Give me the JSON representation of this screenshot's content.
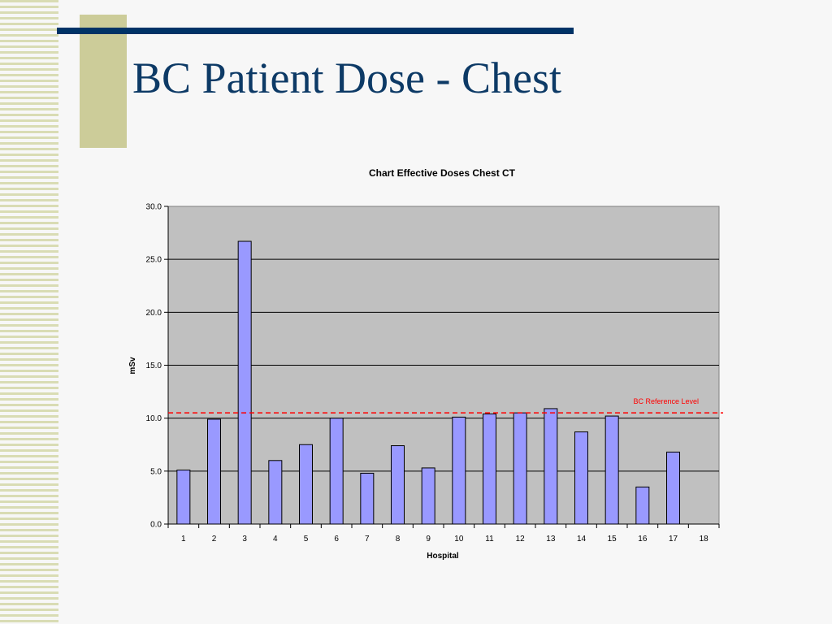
{
  "slide": {
    "title": "BC Patient Dose - Chest"
  },
  "colors": {
    "title": "#0d3a66",
    "title_rule": "#003366",
    "accent_block": "#cccc99",
    "stripes": "#d9dcb4",
    "plot_background": "#c0c0c0",
    "bar_fill": "#9999ff",
    "reference_line": "#ff0000"
  },
  "chart_data": {
    "type": "bar",
    "title": "Chart Effective Doses Chest CT",
    "xlabel": "Hospital",
    "ylabel": "mSv",
    "ylim": [
      0,
      30
    ],
    "yticks": [
      "0.0",
      "5.0",
      "10.0",
      "15.0",
      "20.0",
      "25.0",
      "30.0"
    ],
    "grid": true,
    "categories": [
      "1",
      "2",
      "3",
      "4",
      "5",
      "6",
      "7",
      "8",
      "9",
      "10",
      "11",
      "12",
      "13",
      "14",
      "15",
      "16",
      "17",
      "18"
    ],
    "values": [
      5.1,
      9.9,
      26.7,
      6.0,
      7.5,
      10.0,
      4.8,
      7.4,
      5.3,
      10.1,
      10.4,
      10.5,
      10.9,
      8.7,
      10.2,
      3.5,
      6.8,
      null
    ],
    "reference_line": {
      "label": "BC Reference Level",
      "value": 10.5
    }
  }
}
